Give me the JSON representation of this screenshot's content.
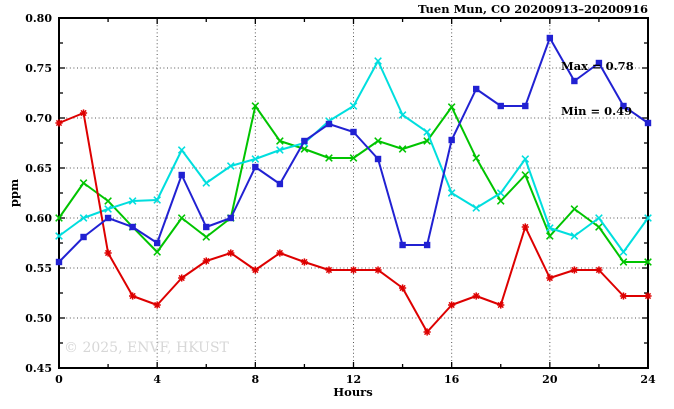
{
  "chart_data": {
    "type": "line",
    "title": "Tuen Mun, CO 20200913–20200916",
    "xlabel": "Hours",
    "ylabel": "ppm",
    "watermark": "© 2025, ENVF, HKUST",
    "annotation": {
      "max": "Max = 0.78",
      "min": "Min = 0.49"
    },
    "xlim": [
      0,
      24
    ],
    "ylim": [
      0.45,
      0.8
    ],
    "grid": "dotted",
    "legend": "none",
    "xticks_major": [
      0,
      4,
      8,
      12,
      16,
      20,
      24
    ],
    "xtick_labels": [
      "0",
      "4",
      "8",
      "12",
      "16",
      "20",
      "24"
    ],
    "xticks_minor": [
      2,
      6,
      10,
      14,
      18,
      22
    ],
    "xgrid_lines": [
      4,
      8,
      12,
      16,
      20
    ],
    "yticks_major": [
      0.45,
      0.5,
      0.55,
      0.6,
      0.65,
      0.7,
      0.75,
      0.8
    ],
    "ytick_labels": [
      "0.45",
      "0.50",
      "0.55",
      "0.60",
      "0.65",
      "0.70",
      "0.75",
      "0.80"
    ],
    "yticks_minor": [
      0.475,
      0.525,
      0.575,
      0.625,
      0.675,
      0.725,
      0.775
    ],
    "ygrid_lines": [
      0.5,
      0.55,
      0.6,
      0.65,
      0.7,
      0.75
    ],
    "x": [
      0,
      1,
      2,
      3,
      4,
      5,
      6,
      7,
      8,
      9,
      10,
      11,
      12,
      13,
      14,
      15,
      16,
      17,
      18,
      19,
      20,
      21,
      22,
      23,
      24
    ],
    "series": [
      {
        "name": "green",
        "color": "#00c400",
        "marker": "x",
        "values": [
          0.6,
          0.635,
          0.617,
          0.591,
          0.566,
          0.6,
          0.581,
          0.6,
          0.712,
          0.677,
          0.669,
          0.66,
          0.66,
          0.677,
          0.669,
          0.677,
          0.711,
          0.66,
          0.617,
          0.643,
          0.582,
          0.609,
          0.591,
          0.556,
          0.556
        ]
      },
      {
        "name": "cyan",
        "color": "#00dede",
        "marker": "x",
        "values": [
          0.582,
          0.6,
          0.609,
          0.617,
          0.618,
          0.668,
          0.635,
          0.652,
          0.659,
          0.668,
          0.675,
          0.697,
          0.712,
          0.757,
          0.703,
          0.686,
          0.625,
          0.61,
          0.625,
          0.659,
          0.59,
          0.582,
          0.6,
          0.566,
          0.6
        ]
      },
      {
        "name": "red",
        "color": "#dd0000",
        "marker": "asterisk",
        "values": [
          0.695,
          0.705,
          0.565,
          0.522,
          0.513,
          0.54,
          0.557,
          0.565,
          0.548,
          0.565,
          0.556,
          0.548,
          0.548,
          0.548,
          0.53,
          0.486,
          0.513,
          0.522,
          0.513,
          0.591,
          0.54,
          0.548,
          0.548,
          0.522,
          0.522
        ]
      },
      {
        "name": "blue",
        "color": "#2121d2",
        "marker": "square",
        "values": [
          0.556,
          0.581,
          0.6,
          0.591,
          0.575,
          0.643,
          0.591,
          0.6,
          0.651,
          0.634,
          0.677,
          0.694,
          0.686,
          0.659,
          0.573,
          0.573,
          0.678,
          0.729,
          0.712,
          0.712,
          0.78,
          0.737,
          0.755,
          0.712,
          0.695
        ]
      }
    ]
  }
}
